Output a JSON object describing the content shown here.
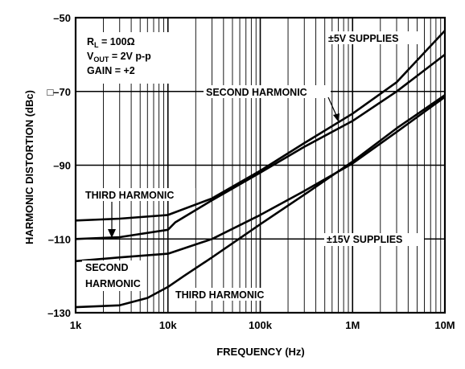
{
  "chart_data": {
    "type": "line",
    "title": "",
    "xlabel": "FREQUENCY (Hz)",
    "ylabel": "HARMONIC DISTORTION (dBc)",
    "xscale": "log",
    "xlim": [
      1000,
      10000000
    ],
    "ylim": [
      -130,
      -50
    ],
    "grid": true,
    "x_ticks": [
      {
        "value": 1000,
        "label": "1k"
      },
      {
        "value": 10000,
        "label": "10k"
      },
      {
        "value": 100000,
        "label": "100k"
      },
      {
        "value": 1000000,
        "label": "1M"
      },
      {
        "value": 10000000,
        "label": "10M"
      }
    ],
    "y_ticks": [
      {
        "value": -50,
        "label": "–50"
      },
      {
        "value": -70,
        "label": "–70"
      },
      {
        "value": -90,
        "label": "–90"
      },
      {
        "value": -110,
        "label": "–110"
      },
      {
        "value": -130,
        "label": "–130"
      }
    ],
    "y_tick_prefix": "□",
    "series": [
      {
        "x": [
          1000,
          3000,
          10000,
          30000,
          100000,
          300000,
          1000000,
          3000000,
          10000000
        ],
        "y": [
          -105,
          -104.5,
          -103.5,
          -99,
          -91.5,
          -84,
          -76,
          -67.5,
          -53.5
        ]
      },
      {
        "x": [
          1000,
          3000,
          10000,
          12000,
          30000,
          100000,
          300000,
          1000000,
          3000000,
          10000000
        ],
        "y": [
          -110,
          -109.5,
          -107.5,
          -105.5,
          -99.5,
          -92,
          -85,
          -78,
          -70,
          -60
        ]
      },
      {
        "x": [
          1000,
          3000,
          10000,
          30000,
          100000,
          300000,
          1000000,
          3000000,
          10000000
        ],
        "y": [
          -116,
          -115,
          -114,
          -110,
          -103.5,
          -97,
          -89.5,
          -81,
          -71.5
        ]
      },
      {
        "x": [
          1000,
          3000,
          6000,
          10000,
          15000,
          30000,
          100000,
          300000,
          1000000,
          3000000,
          10000000
        ],
        "y": [
          -128.5,
          -128,
          -126,
          -123,
          -120,
          -115,
          -106,
          -98,
          -89,
          -80,
          -71
        ]
      }
    ],
    "annotations": [
      {
        "text": "R",
        "sub": "L",
        "rest": " = 100Ω"
      },
      {
        "text": "V",
        "sub": "OUT",
        "rest": " = 2V p-p"
      },
      {
        "text": "GAIN = +2"
      },
      {
        "text": "±5V SUPPLIES"
      },
      {
        "text": "SECOND HARMONIC"
      },
      {
        "text": "THIRD HARMONIC"
      },
      {
        "text": "±15V SUPPLIES"
      },
      {
        "text": "SECOND"
      },
      {
        "text": "HARMONIC"
      },
      {
        "text": "THIRD HARMONIC"
      }
    ]
  }
}
